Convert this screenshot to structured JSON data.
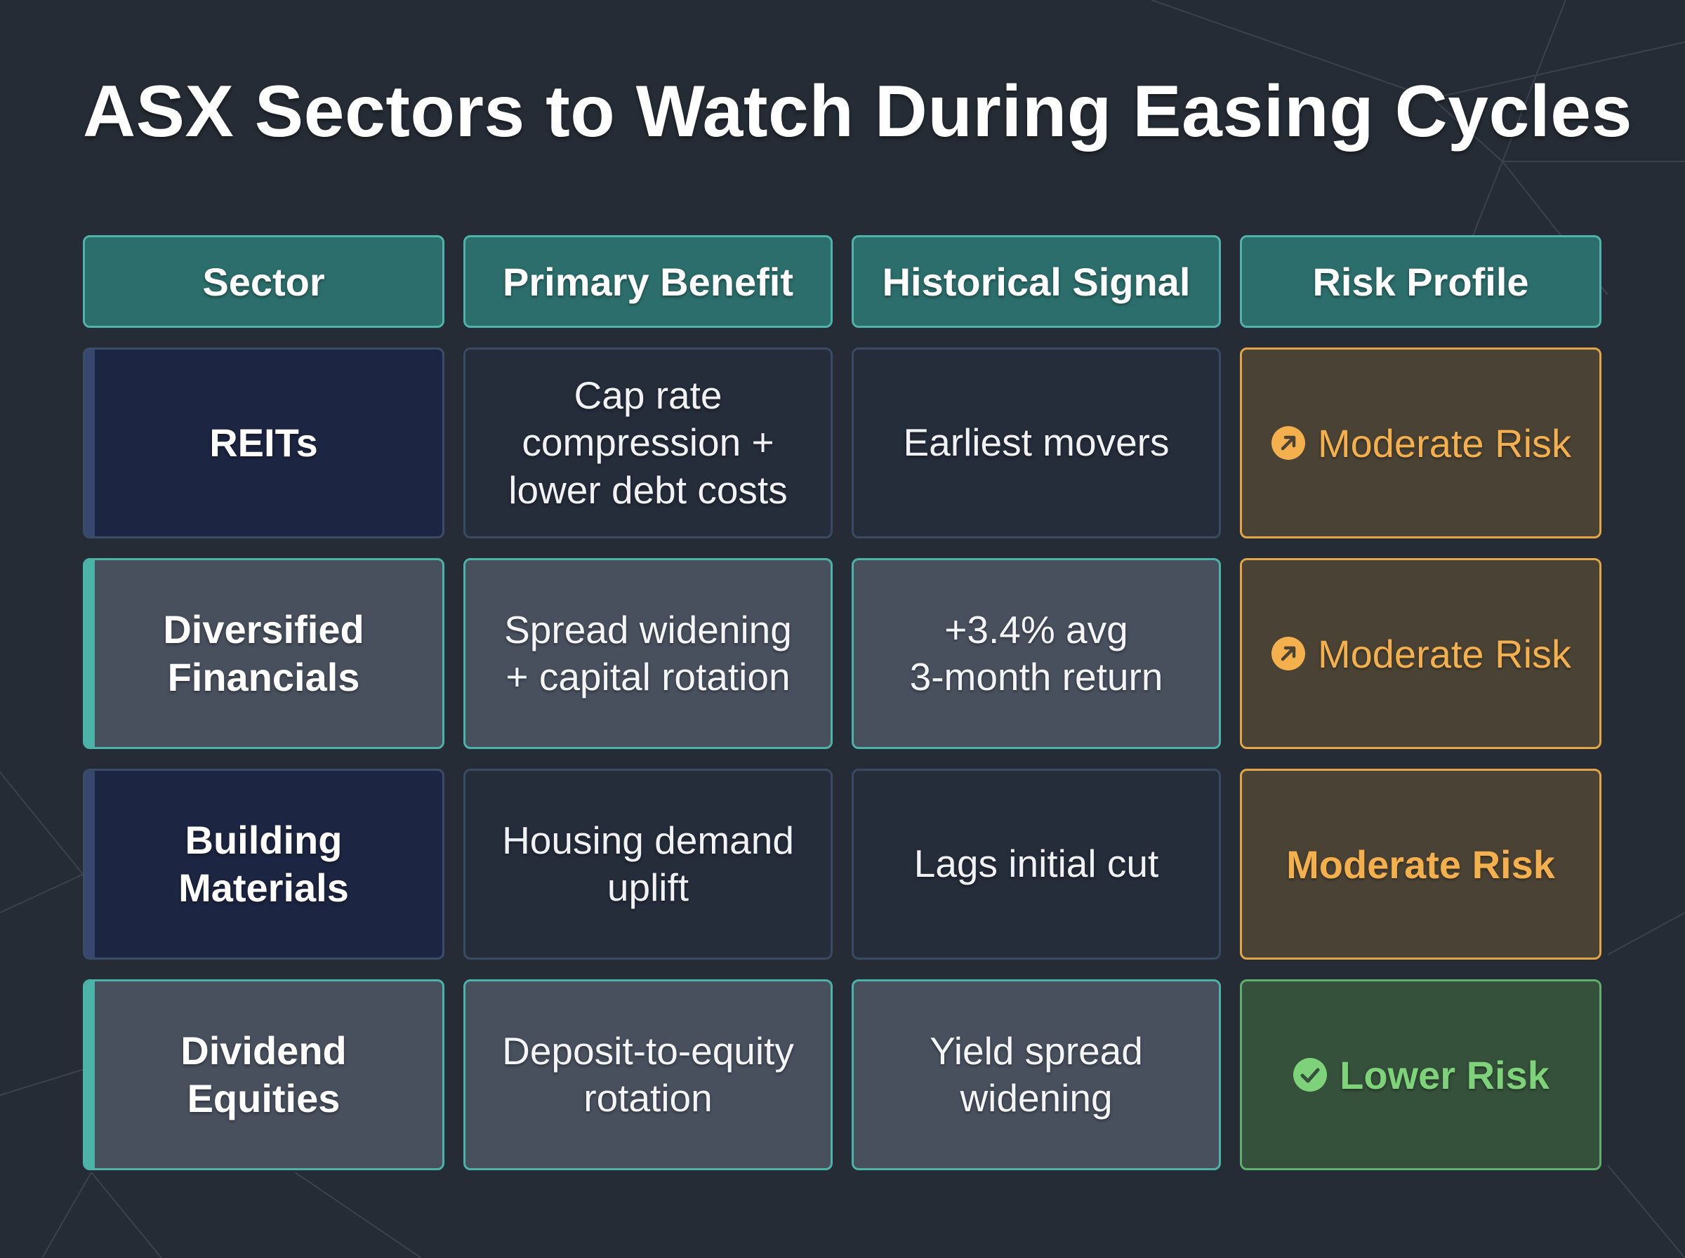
{
  "title": "ASX Sectors to Watch During Easing Cycles",
  "colors": {
    "background": "#262c35",
    "header_fill": "#2b6e6b",
    "teal_accent": "#4cb3a8",
    "moderate_risk": "#f5b04e",
    "lower_risk": "#7ed37a"
  },
  "table": {
    "headers": [
      "Sector",
      "Primary Benefit",
      "Historical Signal",
      "Risk Profile"
    ],
    "rows": [
      {
        "sector": "REITs",
        "benefit": "Cap rate\ncompression +\nlower debt costs",
        "signal": "Earliest movers",
        "risk": "Moderate Risk",
        "risk_icon": "arrow-up-right-icon"
      },
      {
        "sector": "Diversified\nFinancials",
        "benefit": "Spread widening\n+ capital rotation",
        "signal": "+3.4% avg\n3-month return",
        "risk": "Moderate Risk",
        "risk_icon": "arrow-up-right-icon"
      },
      {
        "sector": "Building\nMaterials",
        "benefit": "Housing demand\nuplift",
        "signal": "Lags initial cut",
        "risk": "Moderate Risk",
        "risk_icon": ""
      },
      {
        "sector": "Dividend\nEquities",
        "benefit": "Deposit-to-equity\nrotation",
        "signal": "Yield spread\nwidening",
        "risk": "Lower Risk",
        "risk_icon": "check-circle-icon"
      }
    ]
  }
}
